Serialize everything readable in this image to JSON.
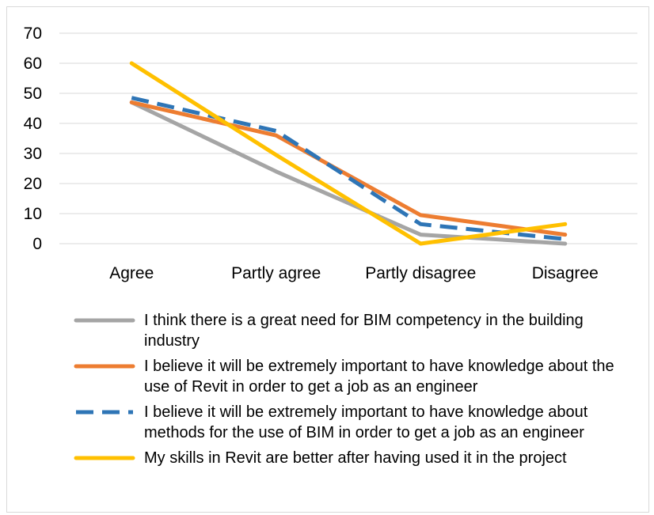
{
  "chart_data": {
    "type": "line",
    "categories": [
      "Agree",
      "Partly agree",
      "Partly disagree",
      "Disagree"
    ],
    "ylim": [
      0,
      70
    ],
    "yticks": [
      0,
      10,
      20,
      30,
      40,
      50,
      60,
      70
    ],
    "grid": true,
    "legend_position": "bottom",
    "series": [
      {
        "name": "I think there is a great need for BIM competency in the building industry",
        "values": [
          47,
          24,
          3,
          0
        ],
        "color": "#a5a5a5",
        "dashed": false
      },
      {
        "name": "I believe it will be extremely important to have knowledge about the use of Revit in order to get a job as an engineer",
        "values": [
          47,
          36,
          9.5,
          3
        ],
        "color": "#ed7d31",
        "dashed": false
      },
      {
        "name": "I believe it will be extremely important to have knowledge about methods for the use of BIM in order to get a job as an engineer",
        "values": [
          48.5,
          37.5,
          6.5,
          1.5
        ],
        "color": "#2e75b6",
        "dashed": true
      },
      {
        "name": "My skills in Revit are better after having used it in the project",
        "values": [
          60,
          29.5,
          0,
          6.5
        ],
        "color": "#ffc000",
        "dashed": false
      }
    ]
  }
}
